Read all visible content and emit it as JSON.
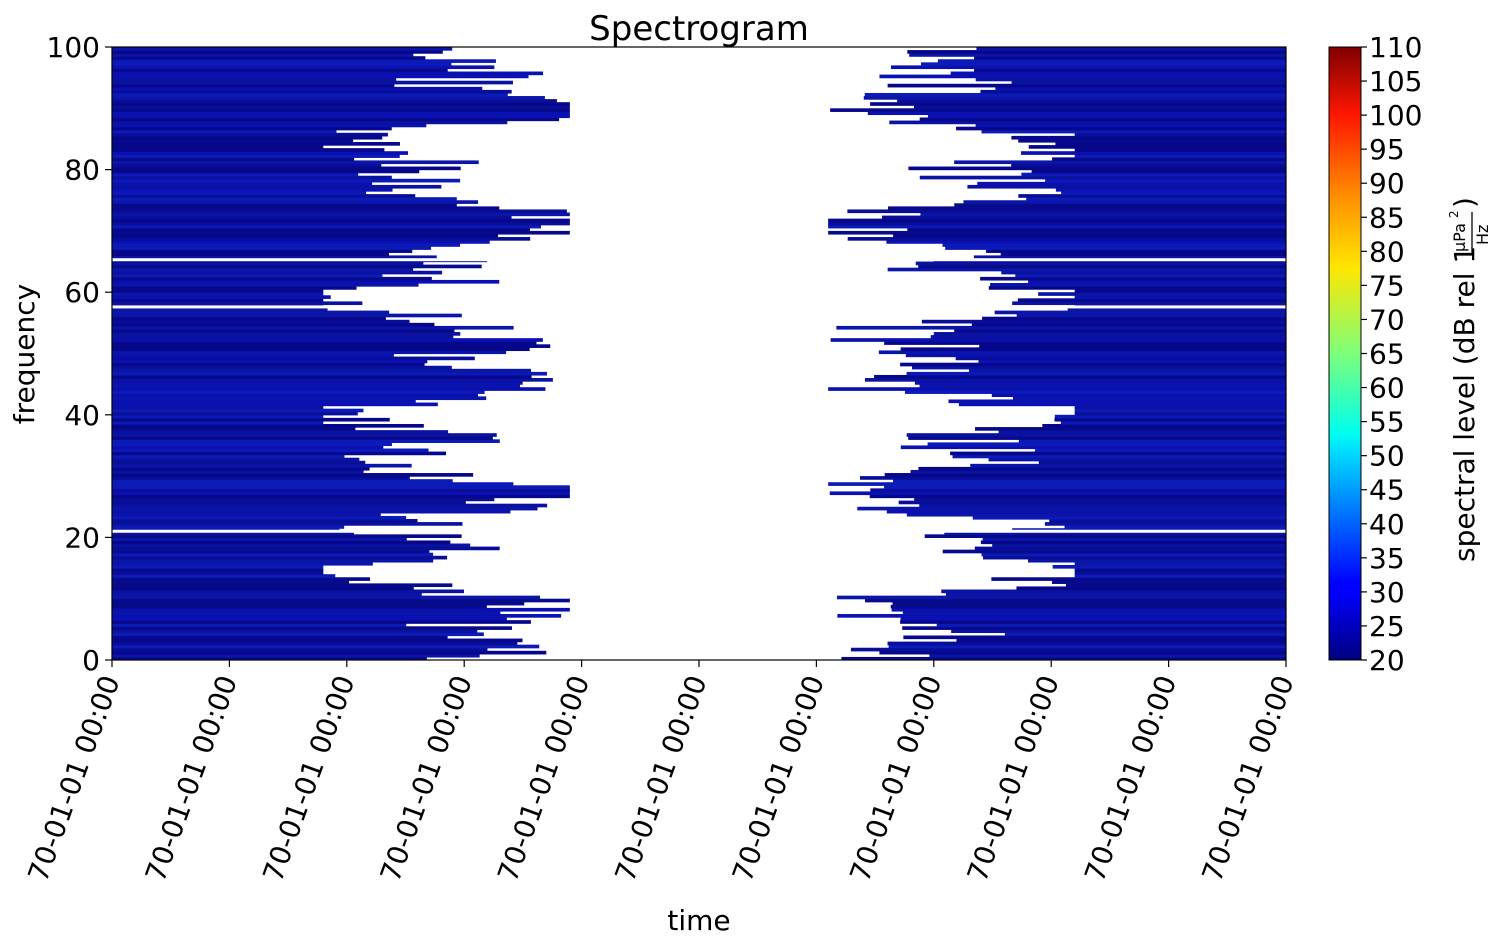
{
  "chart_data": {
    "type": "heatmap",
    "title": "Spectrogram",
    "xlabel": "time",
    "ylabel": "frequency",
    "ylim": [
      0,
      100
    ],
    "yticks": [
      0,
      20,
      40,
      60,
      80,
      100
    ],
    "xticks": [
      "70-01-01 00:00",
      "70-01-01 00:00",
      "70-01-01 00:00",
      "70-01-01 00:00",
      "70-01-01 00:00",
      "70-01-01 00:00",
      "70-01-01 00:00",
      "70-01-01 00:00",
      "70-01-01 00:00",
      "70-01-01 00:00",
      "70-01-01 00:00"
    ],
    "colorbar": {
      "label": "spectral level (dB rel 1",
      "unit_numerator": "μPa",
      "unit_numerator_exp": "2",
      "unit_denominator": "Hz",
      "label_close": ")",
      "colormap": "jet",
      "range": [
        20,
        110
      ],
      "ticks": [
        20,
        25,
        30,
        35,
        40,
        45,
        50,
        55,
        60,
        65,
        70,
        75,
        80,
        85,
        90,
        95,
        100,
        105,
        110
      ]
    },
    "fill_color_dominant": "#0a14a0",
    "gap_color": "#ffffff"
  }
}
